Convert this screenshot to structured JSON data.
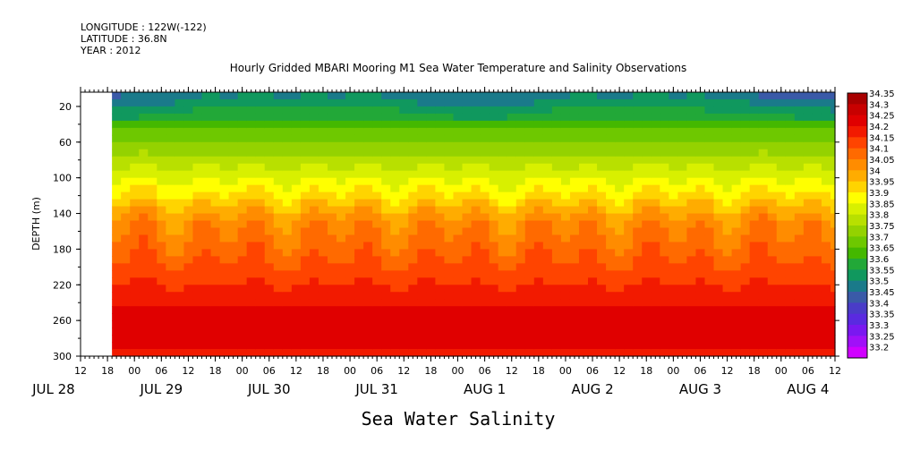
{
  "header": {
    "longitude": "LONGITUDE : 122W(-122)",
    "latitude": "LATITUDE : 36.8N",
    "year": "YEAR : 2012"
  },
  "chart_data": {
    "type": "heatmap",
    "title": "Hourly Gridded MBARI Mooring M1 Sea Water Temperature and Salinity Observations",
    "xlabel": "Sea Water Salinity",
    "ylabel": "DEPTH (m)",
    "ylim": [
      300,
      4
    ],
    "y_reversed": true,
    "y_ticks": [
      20,
      60,
      100,
      140,
      180,
      220,
      260,
      300
    ],
    "x_hour_ticks": [
      "12",
      "18",
      "00",
      "06",
      "12",
      "18",
      "00",
      "06",
      "12",
      "18",
      "00",
      "06",
      "12",
      "18",
      "00",
      "06",
      "12",
      "18",
      "00",
      "06",
      "12",
      "18",
      "00",
      "06",
      "12",
      "18",
      "00",
      "06",
      "12"
    ],
    "x_day_labels": [
      "JUL 28",
      "JUL 29",
      "JUL 30",
      "JUL 31",
      "AUG 1",
      "AUG 2",
      "AUG 3",
      "AUG 4"
    ],
    "time_start_hours_rel_jul28_00": 12,
    "time_end_hours_rel_jul28_00": 180,
    "data_start_hours_rel_jul28_00": 19,
    "colorbar": {
      "levels": [
        34.35,
        34.3,
        34.25,
        34.2,
        34.15,
        34.1,
        34.05,
        34,
        33.95,
        33.9,
        33.85,
        33.8,
        33.75,
        33.7,
        33.65,
        33.6,
        33.55,
        33.5,
        33.45,
        33.4,
        33.35,
        33.3,
        33.25,
        33.2
      ],
      "colors": [
        "#a80000",
        "#c80000",
        "#e00000",
        "#f21a00",
        "#ff4400",
        "#ff6a00",
        "#ff8c00",
        "#ffac00",
        "#ffd400",
        "#ffff00",
        "#d8f000",
        "#b8e000",
        "#94d200",
        "#6ec800",
        "#44b800",
        "#22a838",
        "#10985e",
        "#1a7a8a",
        "#3a5aa8",
        "#4a3cc8",
        "#5a2ae0",
        "#7a18f0",
        "#a010f8",
        "#d000ff"
      ]
    },
    "depth_profile_typical": [
      {
        "depth": 10,
        "value": 33.55
      },
      {
        "depth": 40,
        "value": 33.68
      },
      {
        "depth": 80,
        "value": 33.82
      },
      {
        "depth": 120,
        "value": 33.96
      },
      {
        "depth": 150,
        "value": 34.08
      },
      {
        "depth": 200,
        "value": 34.16
      },
      {
        "depth": 240,
        "value": 34.24
      },
      {
        "depth": 260,
        "value": 34.3
      },
      {
        "depth": 300,
        "value": 34.24
      }
    ]
  }
}
